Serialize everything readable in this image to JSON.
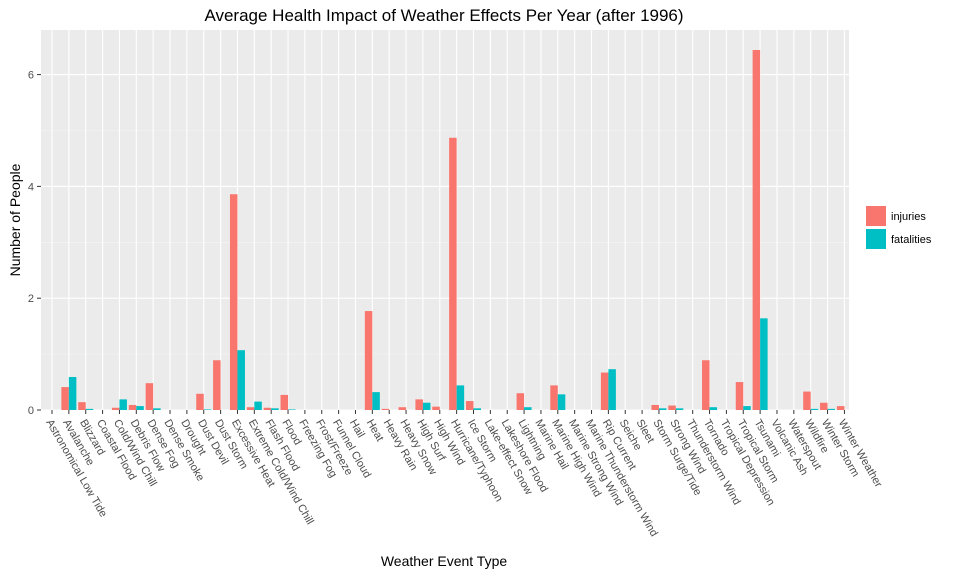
{
  "chart_data": {
    "type": "bar",
    "title": "Average Health Impact of Weather Effects Per Year (after 1996)",
    "xlabel": "Weather Event Type",
    "ylabel": "Number of People",
    "ylim": [
      0,
      6.8
    ],
    "yticks": [
      0,
      2,
      4,
      6
    ],
    "grid": true,
    "legend_position": "right",
    "categories": [
      "Astronomical Low Tide",
      "Avalanche",
      "Blizzard",
      "Coastal Flood",
      "Cold/Wind Chill",
      "Debris Flow",
      "Dense Fog",
      "Dense Smoke",
      "Drought",
      "Dust Devil",
      "Dust Storm",
      "Excessive Heat",
      "Extreme Cold/Wind Chill",
      "Flash Flood",
      "Flood",
      "Freezing Fog",
      "Frost/Freeze",
      "Funnel Cloud",
      "Hail",
      "Heat",
      "Heavy Rain",
      "Heavy Snow",
      "High Surf",
      "High Wind",
      "Hurricane/Typhoon",
      "Ice Storm",
      "Lake-effect Snow",
      "Lakeshore Flood",
      "Lightning",
      "Marine Hail",
      "Marine High Wind",
      "Marine Strong Wind",
      "Marine Thunderstorm Wind",
      "Rip Current",
      "Seiche",
      "Sleet",
      "Storm Surge/Tide",
      "Strong Wind",
      "Thunderstorm Wind",
      "Tornado",
      "Tropical Depression",
      "Tropical Storm",
      "Tsunami",
      "Volcanic Ash",
      "Waterspout",
      "Wildfire",
      "Winter Storm",
      "Winter Weather"
    ],
    "series": [
      {
        "name": "injuries",
        "color": "#F8766D",
        "values": [
          0.0,
          0.41,
          0.14,
          0.0,
          0.04,
          0.09,
          0.48,
          0.0,
          0.0,
          0.29,
          0.89,
          3.86,
          0.05,
          0.04,
          0.27,
          0.0,
          0.0,
          0.0,
          0.0,
          1.77,
          0.02,
          0.05,
          0.19,
          0.06,
          4.87,
          0.16,
          0.0,
          0.0,
          0.3,
          0.0,
          0.44,
          0.0,
          0.0,
          0.67,
          0.0,
          0.0,
          0.09,
          0.08,
          0.0,
          0.89,
          0.0,
          0.5,
          6.44,
          0.0,
          0.0,
          0.33,
          0.13,
          0.07
        ]
      },
      {
        "name": "fatalities",
        "color": "#00BFC4",
        "values": [
          0.0,
          0.59,
          0.02,
          0.0,
          0.19,
          0.07,
          0.03,
          0.0,
          0.0,
          0.01,
          0.0,
          1.07,
          0.15,
          0.03,
          0.01,
          0.0,
          0.0,
          0.0,
          0.0,
          0.32,
          0.0,
          0.0,
          0.13,
          0.0,
          0.44,
          0.03,
          0.0,
          0.0,
          0.05,
          0.0,
          0.28,
          0.0,
          0.0,
          0.73,
          0.0,
          0.0,
          0.03,
          0.03,
          0.0,
          0.05,
          0.0,
          0.07,
          1.64,
          0.0,
          0.0,
          0.02,
          0.02,
          0.0
        ]
      }
    ]
  }
}
